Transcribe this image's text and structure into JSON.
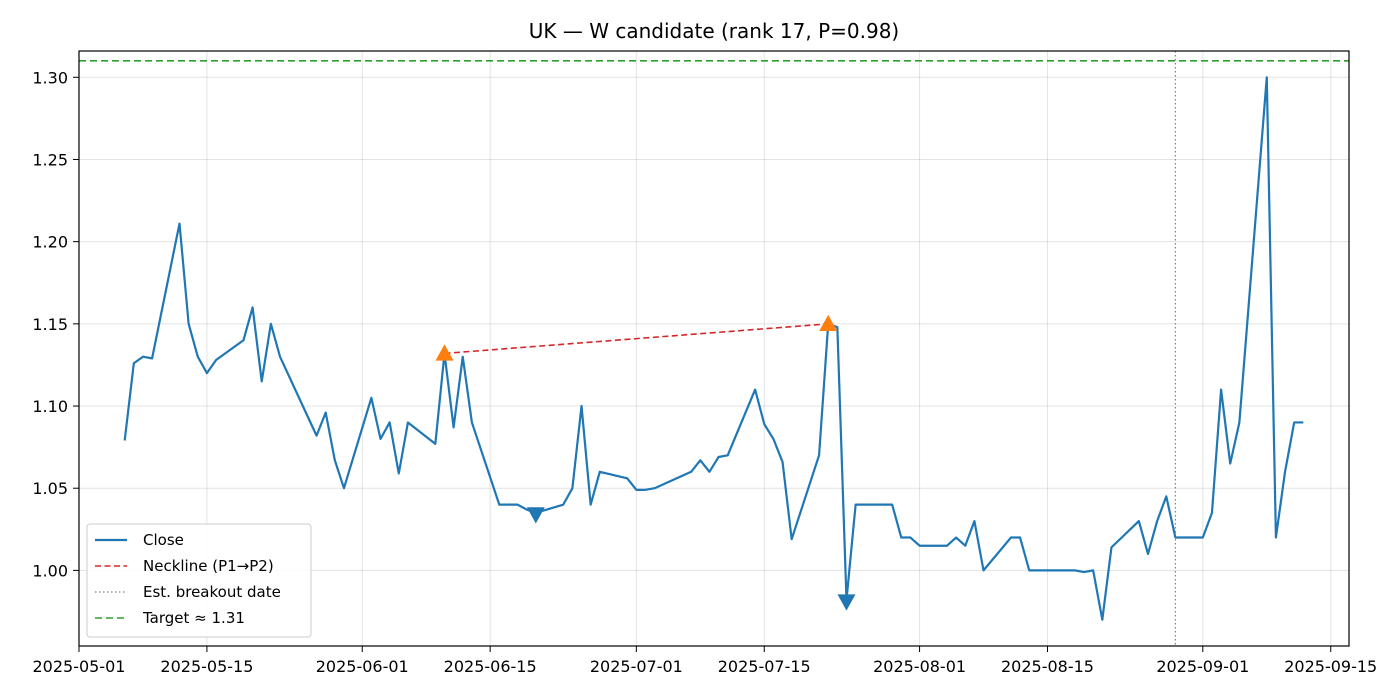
{
  "chart_data": {
    "type": "line",
    "title": "UK — W candidate (rank 17, P=0.98)",
    "xlabel": "",
    "ylabel": "",
    "grid": true,
    "legend_position": "bottom-left",
    "xlim": [
      "2025-05-01",
      "2025-09-17"
    ],
    "ylim": [
      0.954,
      1.316
    ],
    "x_ticks": [
      "2025-05-01",
      "2025-05-15",
      "2025-06-01",
      "2025-06-15",
      "2025-07-01",
      "2025-07-15",
      "2025-08-01",
      "2025-08-15",
      "2025-09-01",
      "2025-09-15"
    ],
    "y_ticks": [
      "1.00",
      "1.05",
      "1.10",
      "1.15",
      "1.20",
      "1.25",
      "1.30"
    ],
    "colors": {
      "close": "#1f77b4",
      "neckline": "#d62728",
      "breakout": "#808080",
      "target": "#2ca02c",
      "peak_marker": "#ff7f0e",
      "trough_marker": "#1f77b4"
    },
    "series": [
      {
        "name": "Close",
        "style": "solid",
        "x": [
          "2025-05-06",
          "2025-05-07",
          "2025-05-08",
          "2025-05-09",
          "2025-05-12",
          "2025-05-13",
          "2025-05-14",
          "2025-05-15",
          "2025-05-16",
          "2025-05-19",
          "2025-05-20",
          "2025-05-21",
          "2025-05-22",
          "2025-05-23",
          "2025-05-27",
          "2025-05-28",
          "2025-05-29",
          "2025-05-30",
          "2025-06-02",
          "2025-06-03",
          "2025-06-04",
          "2025-06-05",
          "2025-06-06",
          "2025-06-09",
          "2025-06-10",
          "2025-06-11",
          "2025-06-12",
          "2025-06-13",
          "2025-06-16",
          "2025-06-17",
          "2025-06-18",
          "2025-06-19",
          "2025-06-20",
          "2025-06-23",
          "2025-06-24",
          "2025-06-25",
          "2025-06-26",
          "2025-06-27",
          "2025-06-30",
          "2025-07-01",
          "2025-07-02",
          "2025-07-03",
          "2025-07-07",
          "2025-07-08",
          "2025-07-09",
          "2025-07-10",
          "2025-07-11",
          "2025-07-14",
          "2025-07-15",
          "2025-07-16",
          "2025-07-17",
          "2025-07-18",
          "2025-07-21",
          "2025-07-22",
          "2025-07-23",
          "2025-07-24",
          "2025-07-25",
          "2025-07-28",
          "2025-07-29",
          "2025-07-30",
          "2025-07-31",
          "2025-08-01",
          "2025-08-04",
          "2025-08-05",
          "2025-08-06",
          "2025-08-07",
          "2025-08-08",
          "2025-08-11",
          "2025-08-12",
          "2025-08-13",
          "2025-08-14",
          "2025-08-15",
          "2025-08-18",
          "2025-08-19",
          "2025-08-20",
          "2025-08-21",
          "2025-08-22",
          "2025-08-25",
          "2025-08-26",
          "2025-08-27",
          "2025-08-28",
          "2025-08-29",
          "2025-09-01",
          "2025-09-02",
          "2025-09-03",
          "2025-09-04",
          "2025-09-05",
          "2025-09-08",
          "2025-09-09",
          "2025-09-10",
          "2025-09-11",
          "2025-09-12"
        ],
        "values": [
          1.079,
          1.126,
          1.13,
          1.129,
          1.211,
          1.15,
          1.13,
          1.12,
          1.128,
          1.14,
          1.16,
          1.115,
          1.15,
          1.13,
          1.082,
          1.096,
          1.067,
          1.05,
          1.105,
          1.08,
          1.09,
          1.059,
          1.09,
          1.077,
          1.132,
          1.087,
          1.13,
          1.09,
          1.04,
          1.04,
          1.04,
          1.037,
          1.035,
          1.04,
          1.05,
          1.1,
          1.04,
          1.06,
          1.056,
          1.049,
          1.049,
          1.05,
          1.06,
          1.067,
          1.06,
          1.069,
          1.07,
          1.11,
          1.089,
          1.08,
          1.066,
          1.019,
          1.07,
          1.15,
          1.148,
          0.982,
          1.04,
          1.04,
          1.04,
          1.02,
          1.02,
          1.015,
          1.015,
          1.02,
          1.015,
          1.03,
          1.0,
          1.02,
          1.02,
          1.0,
          1.0,
          1.0,
          1.0,
          0.999,
          1.0,
          0.97,
          1.014,
          1.03,
          1.01,
          1.03,
          1.045,
          1.02,
          1.02,
          1.035,
          1.11,
          1.065,
          1.09,
          1.3,
          1.02,
          1.06,
          1.09,
          1.09
        ]
      },
      {
        "name": "Neckline (P1→P2)",
        "style": "dashed",
        "x": [
          "2025-06-10",
          "2025-07-22"
        ],
        "values": [
          1.132,
          1.15
        ]
      }
    ],
    "breakout": {
      "name": "Est. breakout date",
      "x": "2025-08-29",
      "style": "dotted"
    },
    "target": {
      "name": "Target ≈ 1.31",
      "y": 1.31,
      "style": "dashed"
    },
    "peaks": [
      {
        "x": "2025-06-10",
        "y": 1.132
      },
      {
        "x": "2025-07-22",
        "y": 1.15
      }
    ],
    "troughs": [
      {
        "x": "2025-06-20",
        "y": 1.034
      },
      {
        "x": "2025-07-24",
        "y": 0.981
      }
    ]
  }
}
